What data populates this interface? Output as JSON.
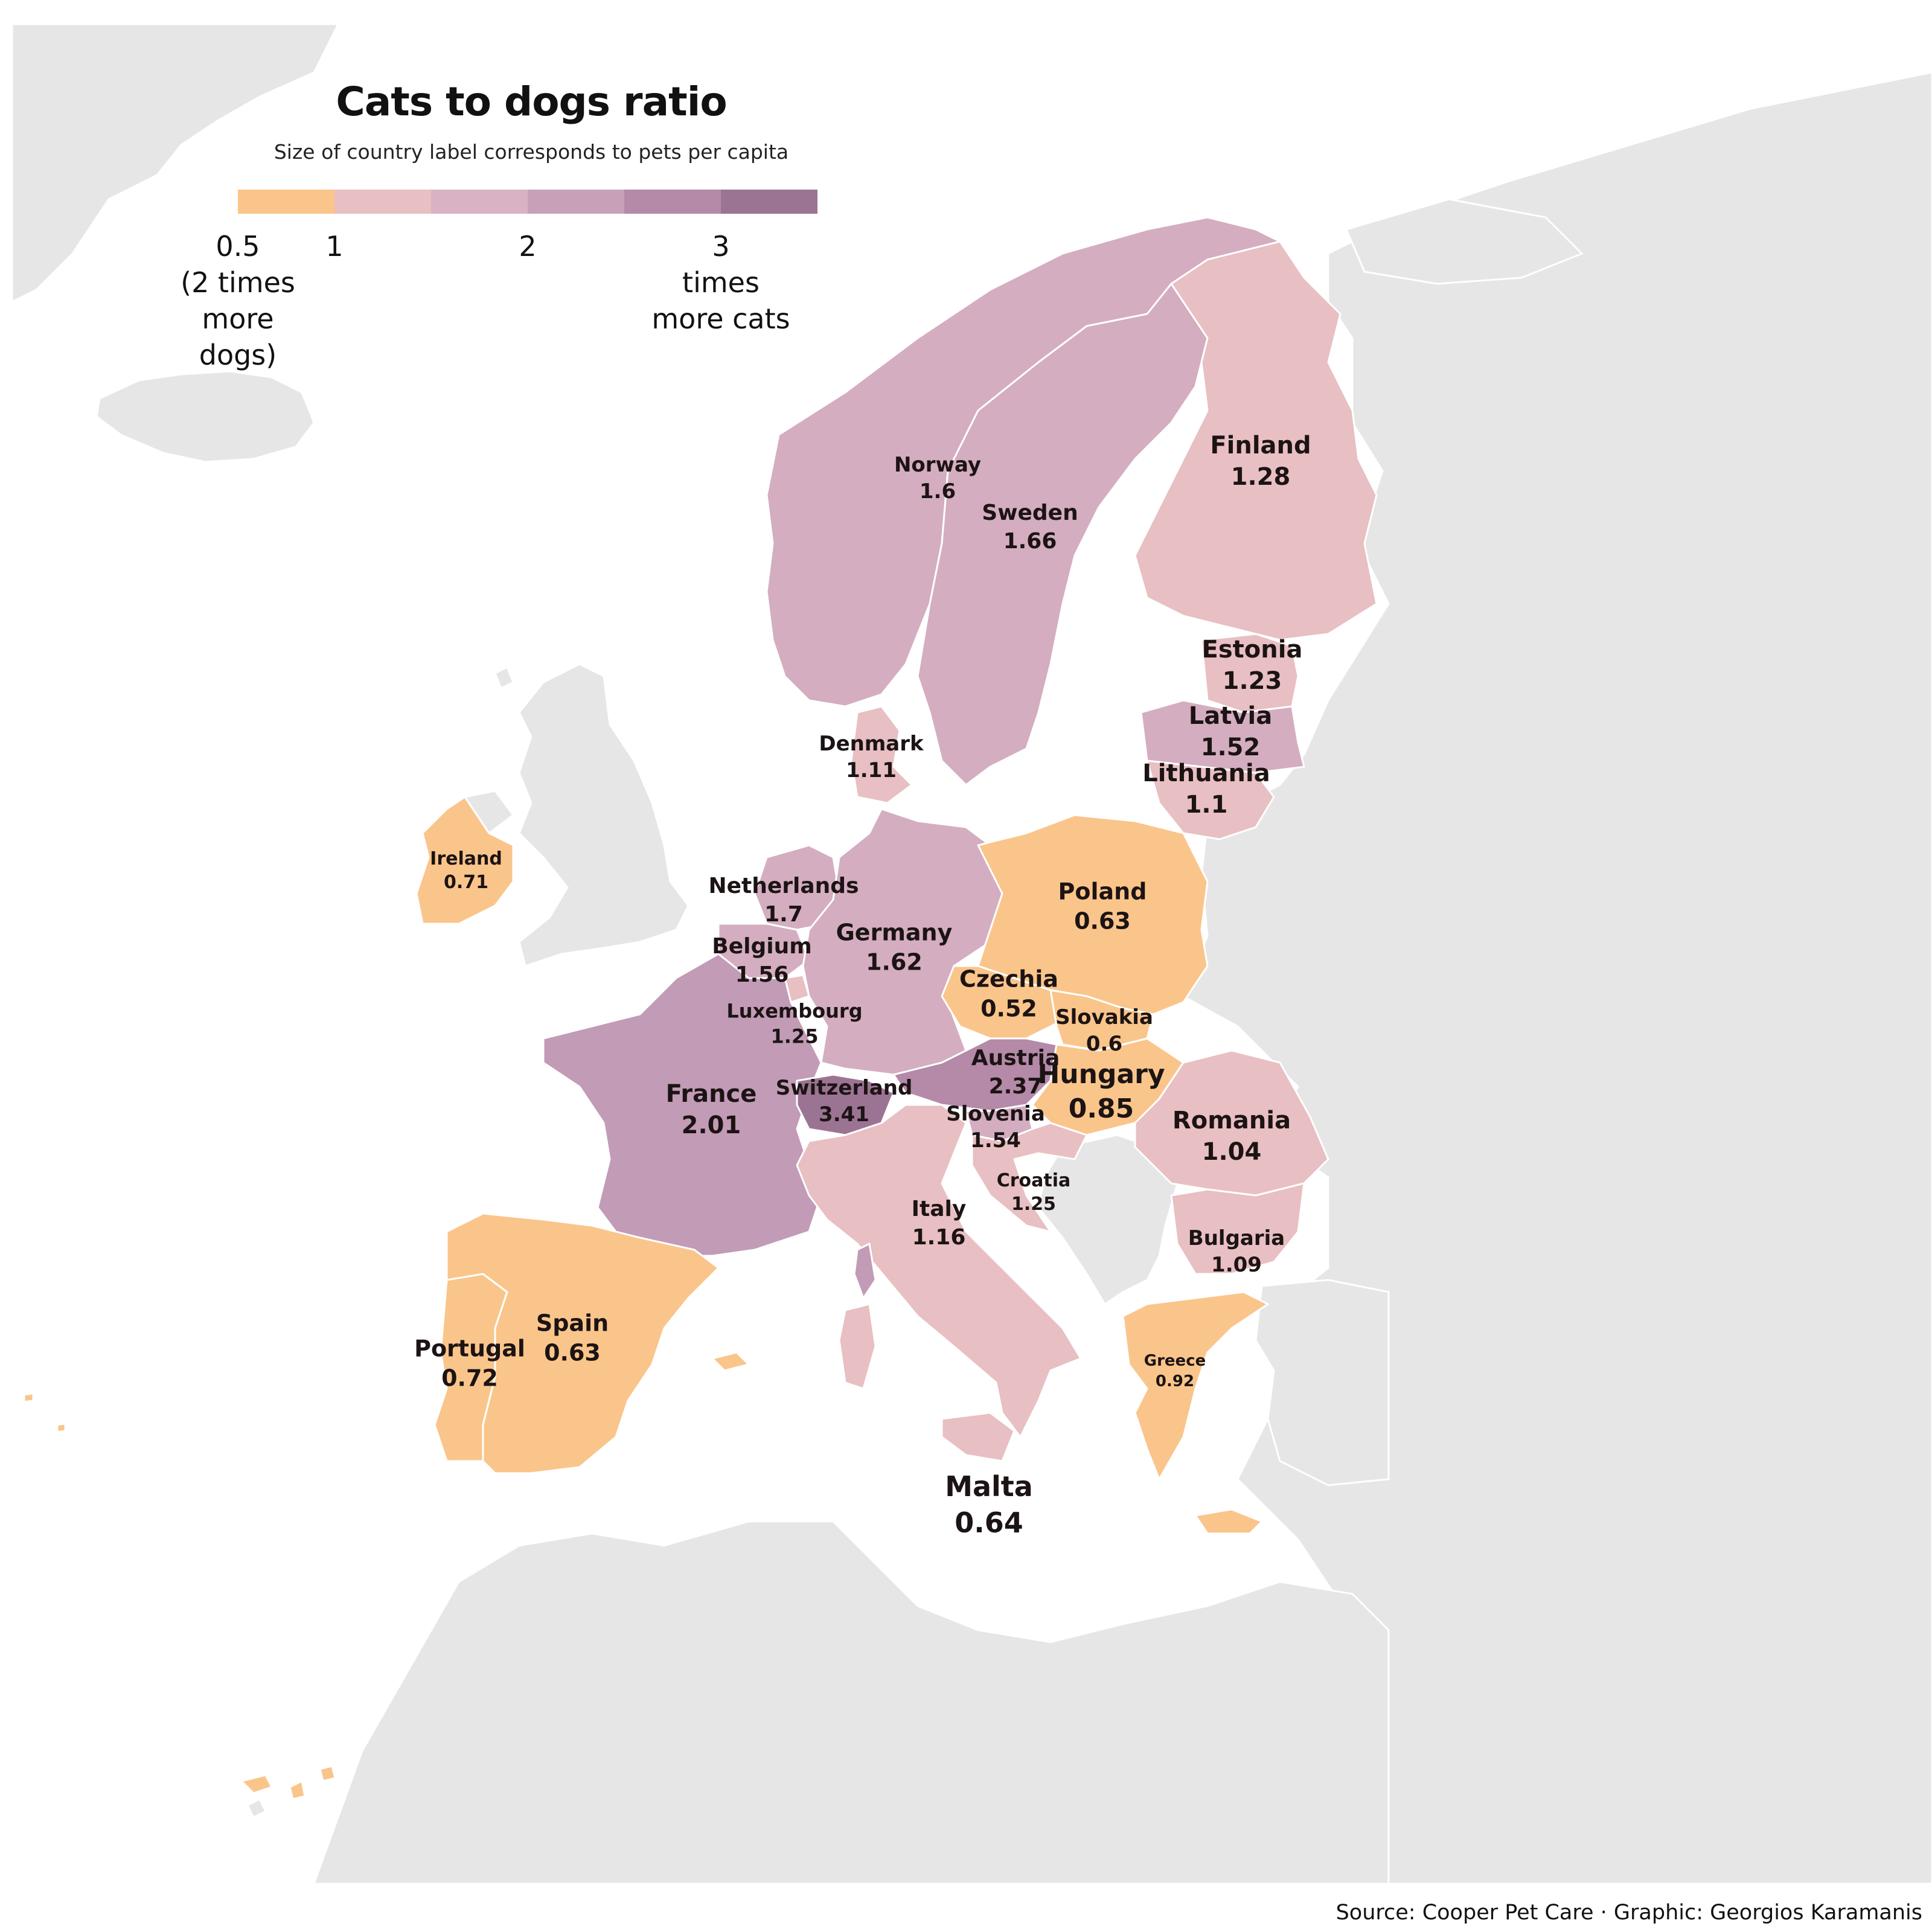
{
  "title": "Cats to dogs ratio",
  "subtitle": "Size of country label corresponds to pets per capita",
  "legend": {
    "colors": [
      "#fac58b",
      "#e8bfc2",
      "#d9b2c3",
      "#c8a1b9",
      "#b48aa8",
      "#9c7493"
    ],
    "labels": [
      {
        "value": "0.5",
        "lines": [
          "0.5",
          "(2 times",
          "more dogs)"
        ]
      },
      {
        "value": "1",
        "lines": [
          "1"
        ]
      },
      {
        "value": "2",
        "lines": [
          "2"
        ]
      },
      {
        "value": "3",
        "lines": [
          "3",
          "times",
          "more cats"
        ]
      }
    ]
  },
  "source": "Source: Cooper Pet Care · Graphic: Georgios Karamanis",
  "colors": {
    "sea": "#ffffff",
    "land": "#e6e6e6",
    "orange": "#fac58b",
    "pink": "#e8bfc2",
    "mauve": "#d4adc0",
    "purple": "#c29bb6",
    "dark": "#9c7493"
  },
  "countries": [
    {
      "name": "Finland",
      "ratio": "1.28"
    },
    {
      "name": "Norway",
      "ratio": "1.6"
    },
    {
      "name": "Sweden",
      "ratio": "1.66"
    },
    {
      "name": "Estonia",
      "ratio": "1.23"
    },
    {
      "name": "Latvia",
      "ratio": "1.52"
    },
    {
      "name": "Lithuania",
      "ratio": "1.1"
    },
    {
      "name": "Denmark",
      "ratio": "1.11"
    },
    {
      "name": "Ireland",
      "ratio": "0.71"
    },
    {
      "name": "Netherlands",
      "ratio": "1.7"
    },
    {
      "name": "Belgium",
      "ratio": "1.56"
    },
    {
      "name": "Germany",
      "ratio": "1.62"
    },
    {
      "name": "Poland",
      "ratio": "0.63"
    },
    {
      "name": "Luxembourg",
      "ratio": "1.25"
    },
    {
      "name": "Czechia",
      "ratio": "0.52"
    },
    {
      "name": "Slovakia",
      "ratio": "0.6"
    },
    {
      "name": "Austria",
      "ratio": "2.37"
    },
    {
      "name": "Hungary",
      "ratio": "0.85"
    },
    {
      "name": "France",
      "ratio": "2.01"
    },
    {
      "name": "Switzerland",
      "ratio": "3.41"
    },
    {
      "name": "Slovenia",
      "ratio": "1.54"
    },
    {
      "name": "Romania",
      "ratio": "1.04"
    },
    {
      "name": "Croatia",
      "ratio": "1.25"
    },
    {
      "name": "Italy",
      "ratio": "1.16"
    },
    {
      "name": "Bulgaria",
      "ratio": "1.09"
    },
    {
      "name": "Spain",
      "ratio": "0.63"
    },
    {
      "name": "Portugal",
      "ratio": "0.72"
    },
    {
      "name": "Greece",
      "ratio": "0.92"
    },
    {
      "name": "Malta",
      "ratio": "0.64"
    }
  ]
}
